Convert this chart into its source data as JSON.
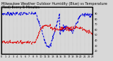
{
  "title": "Milwaukee Weather Outdoor Humidity (Blue) vs Temperature (Red) Every 5 Minutes",
  "background_color": "#d8d8d8",
  "plot_bg_color": "#d8d8d8",
  "grid_color": "#aaaaaa",
  "humidity_color": "#0000dd",
  "temp_color": "#dd0000",
  "linewidth": 0.7,
  "yticks_right": [
    20,
    30,
    40,
    50,
    60,
    70,
    80,
    90
  ],
  "ylim_humidity": [
    15,
    102
  ],
  "ylim_temp": [
    -15,
    90
  ],
  "num_points": 288,
  "title_color": "#000000",
  "title_fontsize": 3.5,
  "tick_color": "#000000",
  "tick_labelsize": 2.5,
  "spine_color": "#000000",
  "right_axis_labels": [
    "20",
    "30",
    "40",
    "50",
    "60",
    "70",
    "80",
    "90"
  ],
  "num_xticks": 24
}
